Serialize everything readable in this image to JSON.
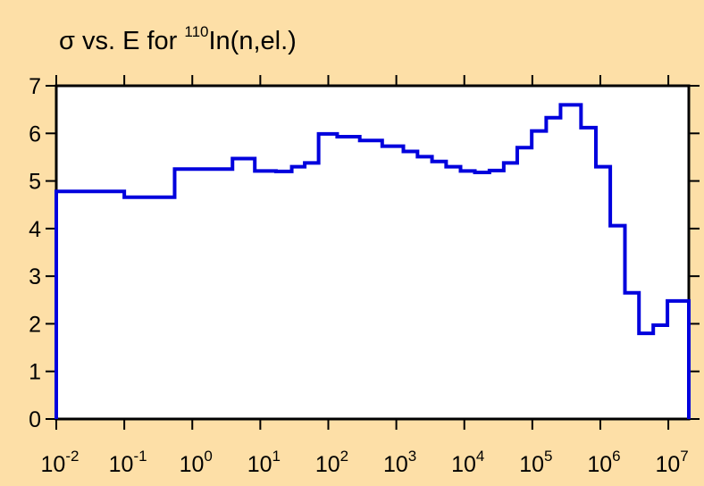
{
  "chart_data": {
    "type": "line",
    "style": "step",
    "title": {
      "prefix": "σ vs. E for ",
      "superscript": "110",
      "suffix": "In(n,el.)"
    },
    "xlabel": "",
    "ylabel": "",
    "x_scale": "log",
    "xlim": [
      0.01,
      20000000
    ],
    "ylim": [
      0,
      7
    ],
    "grid": false,
    "y_ticks": [
      {
        "value": 0,
        "label": "0"
      },
      {
        "value": 1,
        "label": "1"
      },
      {
        "value": 2,
        "label": "2"
      },
      {
        "value": 3,
        "label": "3"
      },
      {
        "value": 4,
        "label": "4"
      },
      {
        "value": 5,
        "label": "5"
      },
      {
        "value": 6,
        "label": "6"
      },
      {
        "value": 7,
        "label": "7"
      }
    ],
    "x_ticks": [
      {
        "value": 0.01,
        "base": "10",
        "exponent": "-2"
      },
      {
        "value": 0.1,
        "base": "10",
        "exponent": "-1"
      },
      {
        "value": 1,
        "base": "10",
        "exponent": "0"
      },
      {
        "value": 10,
        "base": "10",
        "exponent": "1"
      },
      {
        "value": 100,
        "base": "10",
        "exponent": "2"
      },
      {
        "value": 1000,
        "base": "10",
        "exponent": "3"
      },
      {
        "value": 10000,
        "base": "10",
        "exponent": "4"
      },
      {
        "value": 100000,
        "base": "10",
        "exponent": "5"
      },
      {
        "value": 1000000,
        "base": "10",
        "exponent": "6"
      },
      {
        "value": 10000000,
        "base": "10",
        "exponent": "7"
      }
    ],
    "series": [
      {
        "color": "#0000DD",
        "steps": [
          {
            "x0": 0.01,
            "x1": 0.1,
            "y": 4.78
          },
          {
            "x0": 0.1,
            "x1": 0.55,
            "y": 4.66
          },
          {
            "x0": 0.55,
            "x1": 3.9,
            "y": 5.25
          },
          {
            "x0": 3.9,
            "x1": 8.3,
            "y": 5.47
          },
          {
            "x0": 8.3,
            "x1": 17,
            "y": 5.21
          },
          {
            "x0": 17,
            "x1": 29,
            "y": 5.2
          },
          {
            "x0": 29,
            "x1": 45,
            "y": 5.3
          },
          {
            "x0": 45,
            "x1": 72,
            "y": 5.38
          },
          {
            "x0": 72,
            "x1": 135,
            "y": 5.99
          },
          {
            "x0": 135,
            "x1": 290,
            "y": 5.93
          },
          {
            "x0": 290,
            "x1": 620,
            "y": 5.85
          },
          {
            "x0": 620,
            "x1": 1270,
            "y": 5.73
          },
          {
            "x0": 1270,
            "x1": 2050,
            "y": 5.62
          },
          {
            "x0": 2050,
            "x1": 3350,
            "y": 5.51
          },
          {
            "x0": 3350,
            "x1": 5400,
            "y": 5.41
          },
          {
            "x0": 5400,
            "x1": 8800,
            "y": 5.3
          },
          {
            "x0": 8800,
            "x1": 14300,
            "y": 5.21
          },
          {
            "x0": 14300,
            "x1": 23400,
            "y": 5.18
          },
          {
            "x0": 23400,
            "x1": 38000,
            "y": 5.22
          },
          {
            "x0": 38000,
            "x1": 60000,
            "y": 5.38
          },
          {
            "x0": 60000,
            "x1": 98000,
            "y": 5.7
          },
          {
            "x0": 98000,
            "x1": 160000,
            "y": 6.05
          },
          {
            "x0": 160000,
            "x1": 260000,
            "y": 6.33
          },
          {
            "x0": 260000,
            "x1": 520000,
            "y": 6.6
          },
          {
            "x0": 520000,
            "x1": 860000,
            "y": 6.12
          },
          {
            "x0": 860000,
            "x1": 1400000,
            "y": 5.3
          },
          {
            "x0": 1400000,
            "x1": 2300000,
            "y": 4.06
          },
          {
            "x0": 2300000,
            "x1": 3700000,
            "y": 2.65
          },
          {
            "x0": 3700000,
            "x1": 6000000,
            "y": 1.8
          },
          {
            "x0": 6000000,
            "x1": 9700000,
            "y": 1.97
          },
          {
            "x0": 9700000,
            "x1": 20000000,
            "y": 2.48
          }
        ]
      }
    ]
  }
}
